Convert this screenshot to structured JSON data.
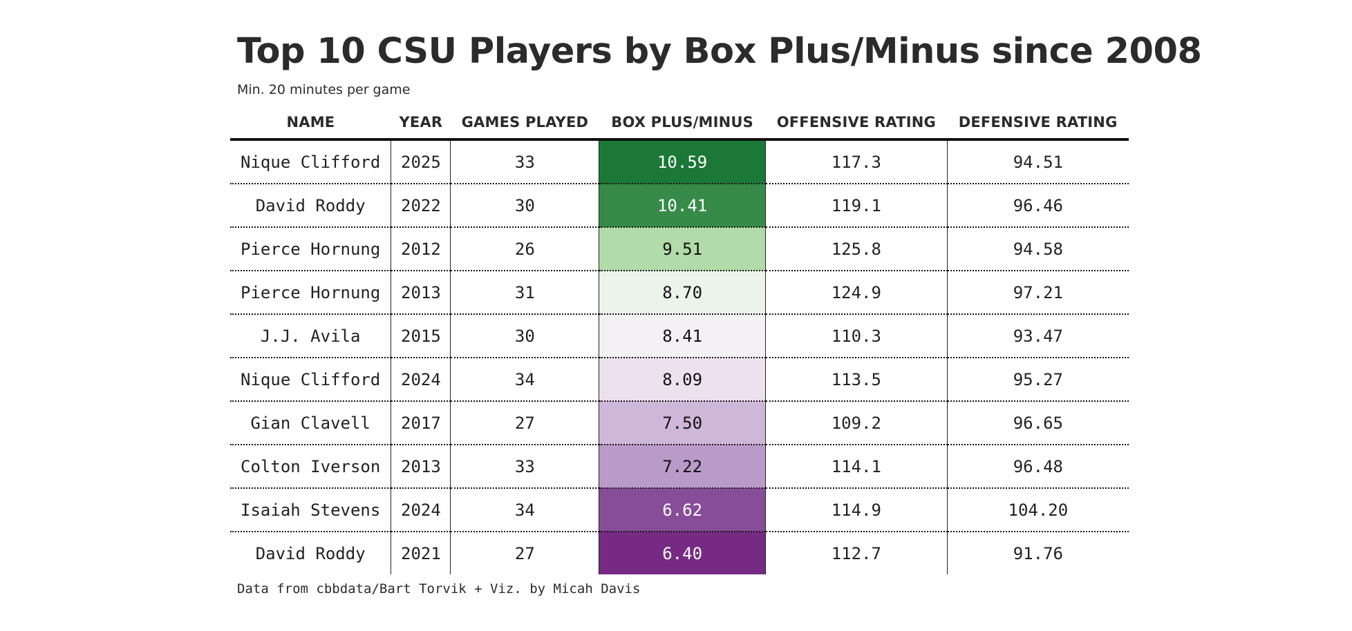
{
  "title": "Top 10 CSU Players by Box Plus/Minus since 2008",
  "subtitle": "Min. 20 minutes per game",
  "source": "Data from cbbdata/Bart Torvik + Viz. by Micah Davis",
  "chart_data": {
    "type": "table",
    "columns": [
      "NAME",
      "YEAR",
      "GAMES PLAYED",
      "BOX PLUS/MINUS",
      "OFFENSIVE RATING",
      "DEFENSIVE RATING"
    ],
    "rows": [
      {
        "name": "Nique Clifford",
        "year": "2025",
        "games": "33",
        "bpm": "10.59",
        "ortg": "117.3",
        "drtg": "94.51",
        "bpm_bg": "#1b7837",
        "bpm_fg": "#ffffff"
      },
      {
        "name": "David Roddy",
        "year": "2022",
        "games": "30",
        "bpm": "10.41",
        "ortg": "119.1",
        "drtg": "96.46",
        "bpm_bg": "#378b49",
        "bpm_fg": "#ffffff"
      },
      {
        "name": "Pierce Hornung",
        "year": "2012",
        "games": "26",
        "bpm": "9.51",
        "ortg": "125.8",
        "drtg": "94.58",
        "bpm_bg": "#b1dba8",
        "bpm_fg": "#111111"
      },
      {
        "name": "Pierce Hornung",
        "year": "2013",
        "games": "31",
        "bpm": "8.70",
        "ortg": "124.9",
        "drtg": "97.21",
        "bpm_bg": "#ecf4ea",
        "bpm_fg": "#111111"
      },
      {
        "name": "J.J. Avila",
        "year": "2015",
        "games": "30",
        "bpm": "8.41",
        "ortg": "110.3",
        "drtg": "93.47",
        "bpm_bg": "#f4f1f5",
        "bpm_fg": "#111111"
      },
      {
        "name": "Nique Clifford",
        "year": "2024",
        "games": "34",
        "bpm": "8.09",
        "ortg": "113.5",
        "drtg": "95.27",
        "bpm_bg": "#ede1ef",
        "bpm_fg": "#111111"
      },
      {
        "name": "Gian Clavell",
        "year": "2017",
        "games": "27",
        "bpm": "7.50",
        "ortg": "109.2",
        "drtg": "96.65",
        "bpm_bg": "#cfb7d9",
        "bpm_fg": "#111111"
      },
      {
        "name": "Colton Iverson",
        "year": "2013",
        "games": "33",
        "bpm": "7.22",
        "ortg": "114.1",
        "drtg": "96.48",
        "bpm_bg": "#ba9ac9",
        "bpm_fg": "#111111"
      },
      {
        "name": "Isaiah Stevens",
        "year": "2024",
        "games": "34",
        "bpm": "6.62",
        "ortg": "114.9",
        "drtg": "104.20",
        "bpm_bg": "#874d98",
        "bpm_fg": "#ffffff"
      },
      {
        "name": "David Roddy",
        "year": "2021",
        "games": "27",
        "bpm": "6.40",
        "ortg": "112.7",
        "drtg": "91.76",
        "bpm_bg": "#762a83",
        "bpm_fg": "#ffffff"
      }
    ]
  }
}
